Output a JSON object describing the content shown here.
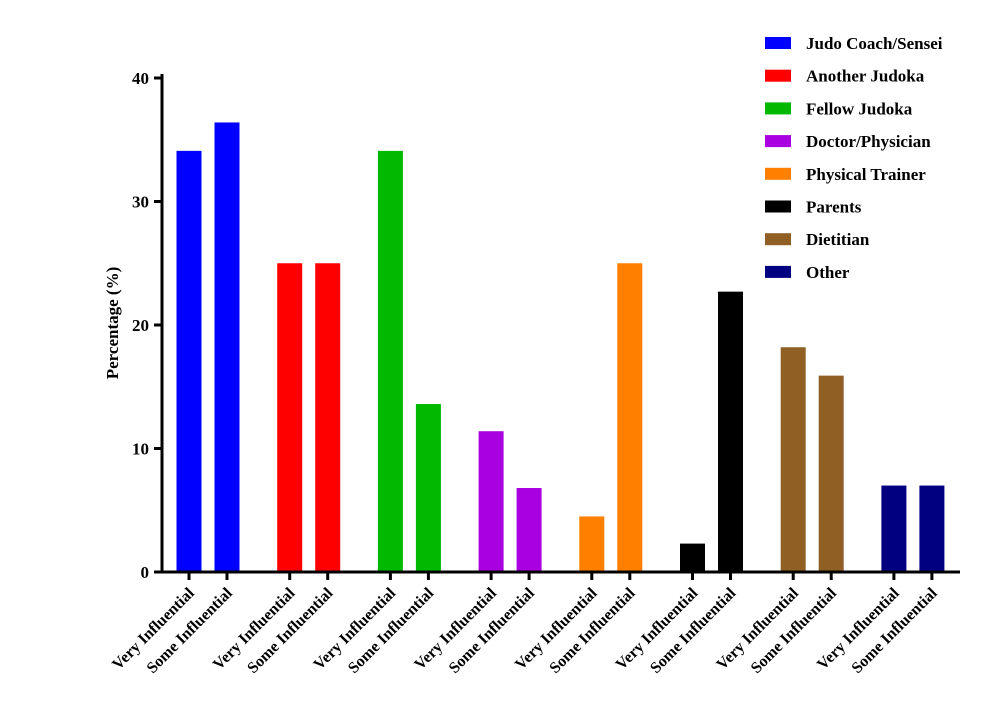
{
  "chart_data": {
    "type": "bar",
    "title": "",
    "xlabel": "",
    "ylabel": "Percentage (%)",
    "ylim": [
      0,
      40
    ],
    "yticks": [
      0,
      10,
      20,
      30,
      40
    ],
    "grid": false,
    "legend_position": "top-right",
    "bar_categories": [
      "Very Influential",
      "Some Influential"
    ],
    "series": [
      {
        "name": "Judo Coach/Sensei",
        "color": "#0000ff",
        "values": [
          34.1,
          36.4
        ]
      },
      {
        "name": "Another Judoka",
        "color": "#ff0000",
        "values": [
          25.0,
          25.0
        ]
      },
      {
        "name": "Fellow Judoka",
        "color": "#00b900",
        "values": [
          34.1,
          13.6
        ]
      },
      {
        "name": "Doctor/Physician",
        "color": "#a800e0",
        "values": [
          11.4,
          6.8
        ]
      },
      {
        "name": "Physical Trainer",
        "color": "#ff8000",
        "values": [
          4.5,
          25.0
        ]
      },
      {
        "name": "Parents",
        "color": "#000000",
        "values": [
          2.3,
          22.7
        ]
      },
      {
        "name": "Dietitian",
        "color": "#8f5f24",
        "values": [
          18.2,
          15.9
        ]
      },
      {
        "name": "Other",
        "color": "#000080",
        "values": [
          7.0,
          7.0
        ]
      }
    ]
  }
}
